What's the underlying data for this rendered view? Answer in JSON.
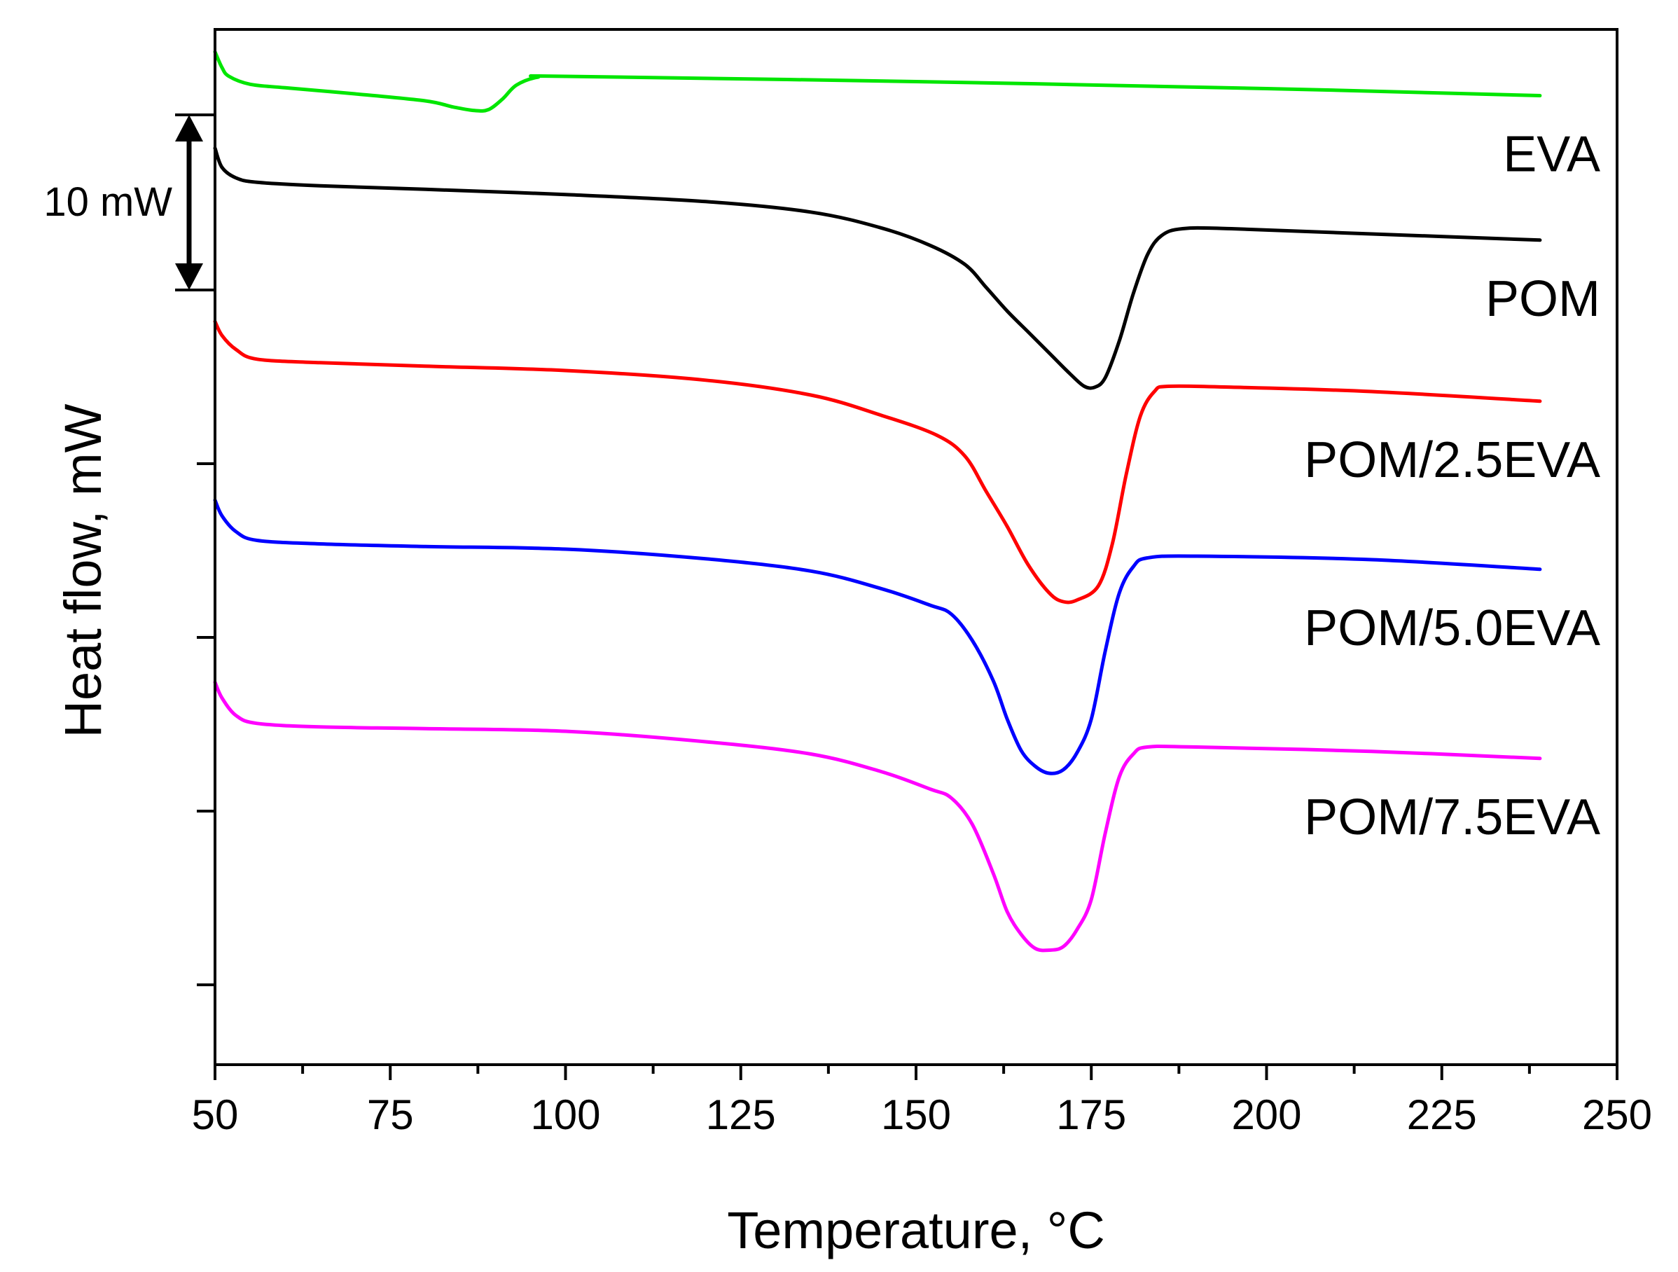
{
  "chart_data": {
    "type": "line",
    "title": "",
    "xlabel": "Temperature, °C",
    "ylabel": "Heat flow, mW",
    "xlim": [
      50,
      250
    ],
    "x_ticks": [
      "50",
      "75",
      "100",
      "125",
      "150",
      "175",
      "200",
      "225",
      "250"
    ],
    "y_ticks_count": 6,
    "scale_bar": {
      "label": "10 mW",
      "value_mW": 10
    },
    "legend_placement": "right, labels beside each curve",
    "series": [
      {
        "name": "EVA",
        "color": "#00e600",
        "points": [
          [
            50,
            13.6
          ],
          [
            51,
            12.7
          ],
          [
            52,
            12.2
          ],
          [
            55,
            11.75
          ],
          [
            60,
            11.55
          ],
          [
            70,
            11.2
          ],
          [
            80,
            10.8
          ],
          [
            84,
            10.45
          ],
          [
            87,
            10.25
          ],
          [
            89,
            10.3
          ],
          [
            91,
            10.9
          ],
          [
            93,
            11.7
          ],
          [
            96,
            12.15
          ],
          [
            100,
            12.2
          ],
          [
            150,
            11.9
          ],
          [
            200,
            11.5
          ],
          [
            239,
            11.1
          ]
        ]
      },
      {
        "name": "POM",
        "color": "#000000",
        "points": [
          [
            50,
            8.1
          ],
          [
            51,
            7.0
          ],
          [
            53,
            6.4
          ],
          [
            56,
            6.15
          ],
          [
            65,
            5.95
          ],
          [
            80,
            5.75
          ],
          [
            100,
            5.45
          ],
          [
            120,
            5.05
          ],
          [
            135,
            4.45
          ],
          [
            145,
            3.55
          ],
          [
            152,
            2.55
          ],
          [
            157,
            1.45
          ],
          [
            160,
            0.15
          ],
          [
            163,
            -1.2
          ],
          [
            166,
            -2.4
          ],
          [
            169,
            -3.6
          ],
          [
            172,
            -4.8
          ],
          [
            174,
            -5.5
          ],
          [
            175.5,
            -5.55
          ],
          [
            177,
            -5.0
          ],
          [
            179,
            -2.9
          ],
          [
            181,
            -0.2
          ],
          [
            183,
            2.0
          ],
          [
            185,
            3.1
          ],
          [
            188,
            3.5
          ],
          [
            195,
            3.5
          ],
          [
            215,
            3.2
          ],
          [
            239,
            2.85
          ]
        ]
      },
      {
        "name": "POM/2.5EVA",
        "color": "#ff0000",
        "points": [
          [
            50,
            -1.8
          ],
          [
            51,
            -2.6
          ],
          [
            53,
            -3.4
          ],
          [
            56,
            -3.95
          ],
          [
            65,
            -4.15
          ],
          [
            80,
            -4.35
          ],
          [
            100,
            -4.6
          ],
          [
            120,
            -5.15
          ],
          [
            135,
            -6.0
          ],
          [
            145,
            -7.15
          ],
          [
            153,
            -8.3
          ],
          [
            157,
            -9.5
          ],
          [
            160,
            -11.5
          ],
          [
            163,
            -13.5
          ],
          [
            166,
            -15.7
          ],
          [
            169,
            -17.3
          ],
          [
            171,
            -17.8
          ],
          [
            173,
            -17.7
          ],
          [
            176,
            -16.9
          ],
          [
            178,
            -14.5
          ],
          [
            180,
            -10.5
          ],
          [
            182,
            -7.2
          ],
          [
            184,
            -5.8
          ],
          [
            186,
            -5.5
          ],
          [
            195,
            -5.55
          ],
          [
            215,
            -5.8
          ],
          [
            239,
            -6.35
          ]
        ]
      },
      {
        "name": "POM/5.0EVA",
        "color": "#0000ff",
        "points": [
          [
            50,
            -12.0
          ],
          [
            51,
            -12.9
          ],
          [
            53,
            -13.8
          ],
          [
            56,
            -14.3
          ],
          [
            65,
            -14.5
          ],
          [
            80,
            -14.65
          ],
          [
            100,
            -14.8
          ],
          [
            120,
            -15.35
          ],
          [
            135,
            -16.05
          ],
          [
            145,
            -17.05
          ],
          [
            152,
            -18.0
          ],
          [
            155,
            -18.5
          ],
          [
            158,
            -20.0
          ],
          [
            161,
            -22.3
          ],
          [
            163,
            -24.5
          ],
          [
            165,
            -26.3
          ],
          [
            167,
            -27.2
          ],
          [
            169,
            -27.6
          ],
          [
            171,
            -27.4
          ],
          [
            173,
            -26.4
          ],
          [
            175,
            -24.5
          ],
          [
            177,
            -20.6
          ],
          [
            179,
            -17.3
          ],
          [
            181,
            -15.8
          ],
          [
            183,
            -15.3
          ],
          [
            190,
            -15.2
          ],
          [
            215,
            -15.4
          ],
          [
            239,
            -15.95
          ]
        ]
      },
      {
        "name": "POM/7.5EVA",
        "color": "#ff00ff",
        "points": [
          [
            50,
            -22.4
          ],
          [
            51,
            -23.3
          ],
          [
            53,
            -24.3
          ],
          [
            56,
            -24.75
          ],
          [
            65,
            -24.95
          ],
          [
            80,
            -25.05
          ],
          [
            100,
            -25.2
          ],
          [
            120,
            -25.8
          ],
          [
            135,
            -26.5
          ],
          [
            145,
            -27.5
          ],
          [
            152,
            -28.5
          ],
          [
            155,
            -29.0
          ],
          [
            158,
            -30.5
          ],
          [
            161,
            -33.3
          ],
          [
            163,
            -35.5
          ],
          [
            165,
            -36.8
          ],
          [
            167,
            -37.6
          ],
          [
            169,
            -37.7
          ],
          [
            171,
            -37.5
          ],
          [
            173,
            -36.5
          ],
          [
            175,
            -34.8
          ],
          [
            177,
            -31.0
          ],
          [
            179,
            -27.8
          ],
          [
            181,
            -26.5
          ],
          [
            183,
            -26.1
          ],
          [
            190,
            -26.1
          ],
          [
            215,
            -26.35
          ],
          [
            239,
            -26.75
          ]
        ]
      }
    ]
  }
}
